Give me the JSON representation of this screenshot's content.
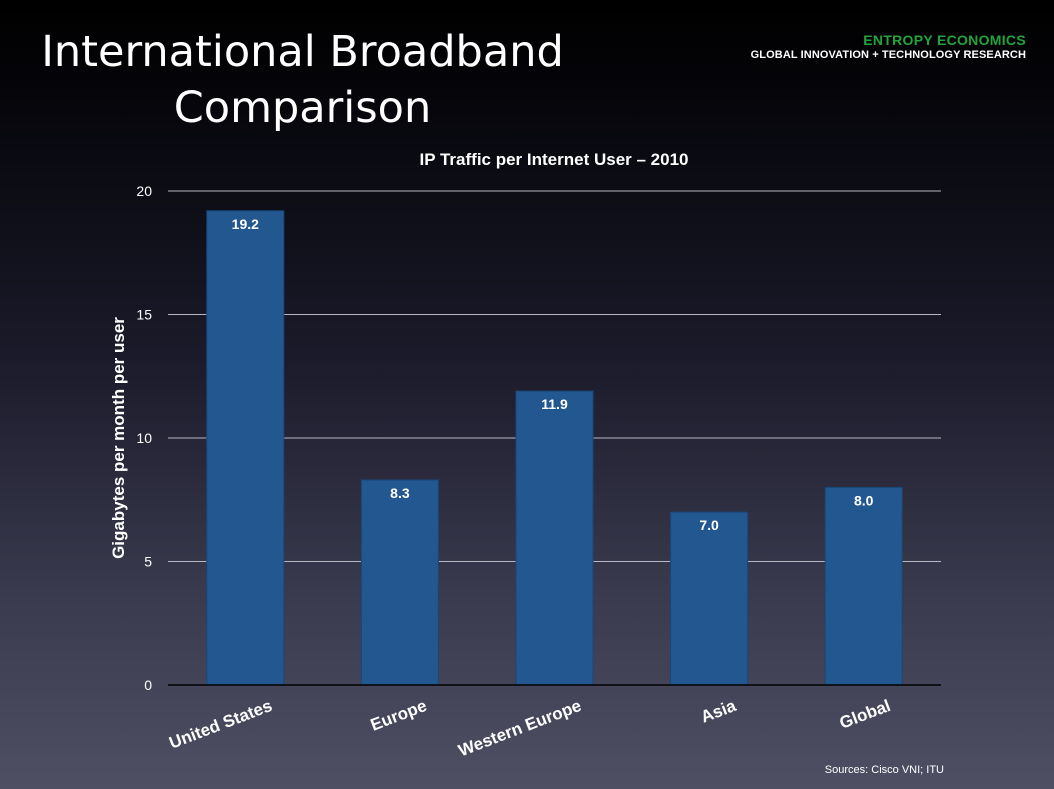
{
  "slide": {
    "title_line1": "International Broadband",
    "title_line2": "Comparison"
  },
  "brand": {
    "name": "ENTROPY ECONOMICS",
    "tagline": "GLOBAL INNOVATION + TECHNOLOGY RESEARCH",
    "name_color": "#24a33c"
  },
  "source": "Sources: Cisco VNI; ITU",
  "chart_data": {
    "type": "bar",
    "title": "IP Traffic per Internet User – 2010",
    "xlabel": "",
    "ylabel": "Gigabytes per month per user",
    "categories": [
      "United States",
      "Europe",
      "Western Europe",
      "Asia",
      "Global"
    ],
    "values": [
      19.2,
      8.3,
      11.9,
      7.0,
      8.0
    ],
    "data_labels": [
      "19.2",
      "8.3",
      "11.9",
      "7.0",
      "8.0"
    ],
    "ylim": [
      0,
      20
    ],
    "yticks": [
      0,
      5,
      10,
      15,
      20
    ],
    "grid": true,
    "legend": "none",
    "bar_color": "#23578f"
  }
}
